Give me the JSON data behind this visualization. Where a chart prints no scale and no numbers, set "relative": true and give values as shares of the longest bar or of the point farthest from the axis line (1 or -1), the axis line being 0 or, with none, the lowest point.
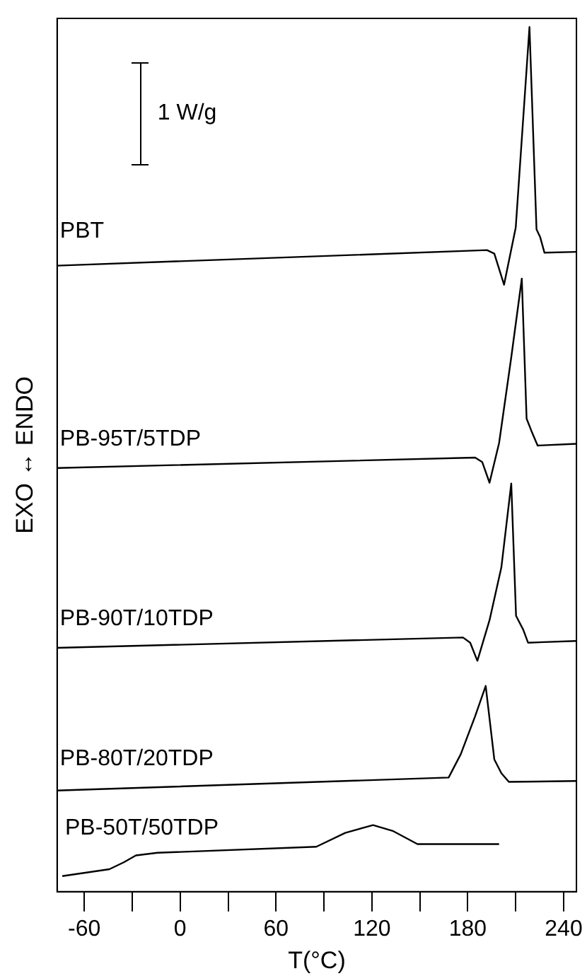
{
  "chart_data": {
    "type": "line",
    "relative": true,
    "xlabel": "T(°C)",
    "ylabel": "EXO ↔ ENDO",
    "annotations": [
      "1 W/g"
    ],
    "xlim": [
      -77,
      248
    ],
    "xticks": [
      -60,
      {
        "value": -30,
        "label": null
      },
      0,
      {
        "value": 30,
        "label": null
      },
      60,
      {
        "value": 90,
        "label": null
      },
      120,
      {
        "value": 150,
        "label": null
      },
      180,
      {
        "value": 210,
        "label": null
      },
      240
    ],
    "grid": false,
    "legend": false,
    "marker": "none",
    "line_style": "solid",
    "series": [
      {
        "name": "PBT",
        "color": "#000000",
        "x": [
          -77,
          192,
          196.6,
          202.7,
          210,
          218.6,
          223,
          225.3,
          228,
          248
        ],
        "values": [
          0.724,
          0.742,
          0.738,
          0.702,
          0.768,
          1.0,
          0.766,
          0.757,
          0.739,
          0.74
        ]
      },
      {
        "name": "PB-95T/5TDP",
        "color": "#000000",
        "x": [
          -77,
          184.6,
          189,
          193.6,
          199.6,
          207.2,
          213.8,
          216.8,
          219.8,
          223.7,
          248
        ],
        "values": [
          0.49,
          0.502,
          0.497,
          0.473,
          0.519,
          0.618,
          0.709,
          0.547,
          0.533,
          0.516,
          0.518
        ]
      },
      {
        "name": "PB-90T/10TDP",
        "color": "#000000",
        "x": [
          -77,
          177,
          181.5,
          186,
          193.6,
          201,
          207.2,
          210.2,
          214.7,
          217.7,
          248
        ],
        "values": [
          0.282,
          0.294,
          0.288,
          0.267,
          0.314,
          0.375,
          0.472,
          0.319,
          0.303,
          0.288,
          0.29
        ]
      },
      {
        "name": "PB-80T/20TDP",
        "color": "#000000",
        "x": [
          -77,
          168,
          175.6,
          184.6,
          191.2,
          196.6,
          201,
          205.7,
          248
        ],
        "values": [
          0.117,
          0.132,
          0.159,
          0.203,
          0.238,
          0.153,
          0.137,
          0.127,
          0.128
        ]
      },
      {
        "name": "PB-50T/50TDP",
        "color": "#000000",
        "x": [
          -73.8,
          -44.3,
          -35.3,
          -27.7,
          -14.2,
          85.2,
          103.3,
          120.7,
          133.4,
          148.5,
          199.6
        ],
        "values": [
          0.018,
          0.026,
          0.034,
          0.042,
          0.045,
          0.052,
          0.068,
          0.077,
          0.07,
          0.055,
          0.055
        ]
      }
    ]
  }
}
